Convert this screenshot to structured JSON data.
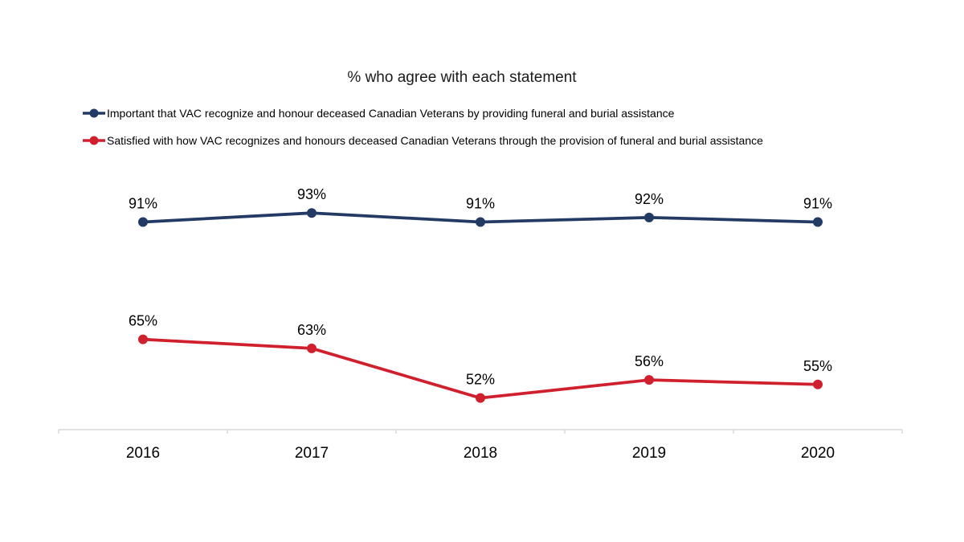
{
  "chart_data": {
    "type": "line",
    "title": "% who agree with each statement",
    "categories": [
      "2016",
      "2017",
      "2018",
      "2019",
      "2020"
    ],
    "series": [
      {
        "name": "Important that VAC recognize and honour deceased Canadian Veterans by providing funeral and burial assistance",
        "color": "#223A64",
        "values": [
          91,
          93,
          91,
          92,
          91
        ]
      },
      {
        "name": "Satisfied with how VAC recognizes and honours deceased Canadian Veterans through the provision of funeral and burial assistance",
        "color": "#D0202E",
        "values": [
          65,
          63,
          52,
          56,
          55
        ]
      }
    ],
    "value_suffix": "%",
    "ylim": [
      45,
      95
    ],
    "grid": false,
    "legend_position": "top-left",
    "axis_color": "#D9D9D9",
    "label_color": "#000000",
    "xlabel": "",
    "ylabel": ""
  }
}
